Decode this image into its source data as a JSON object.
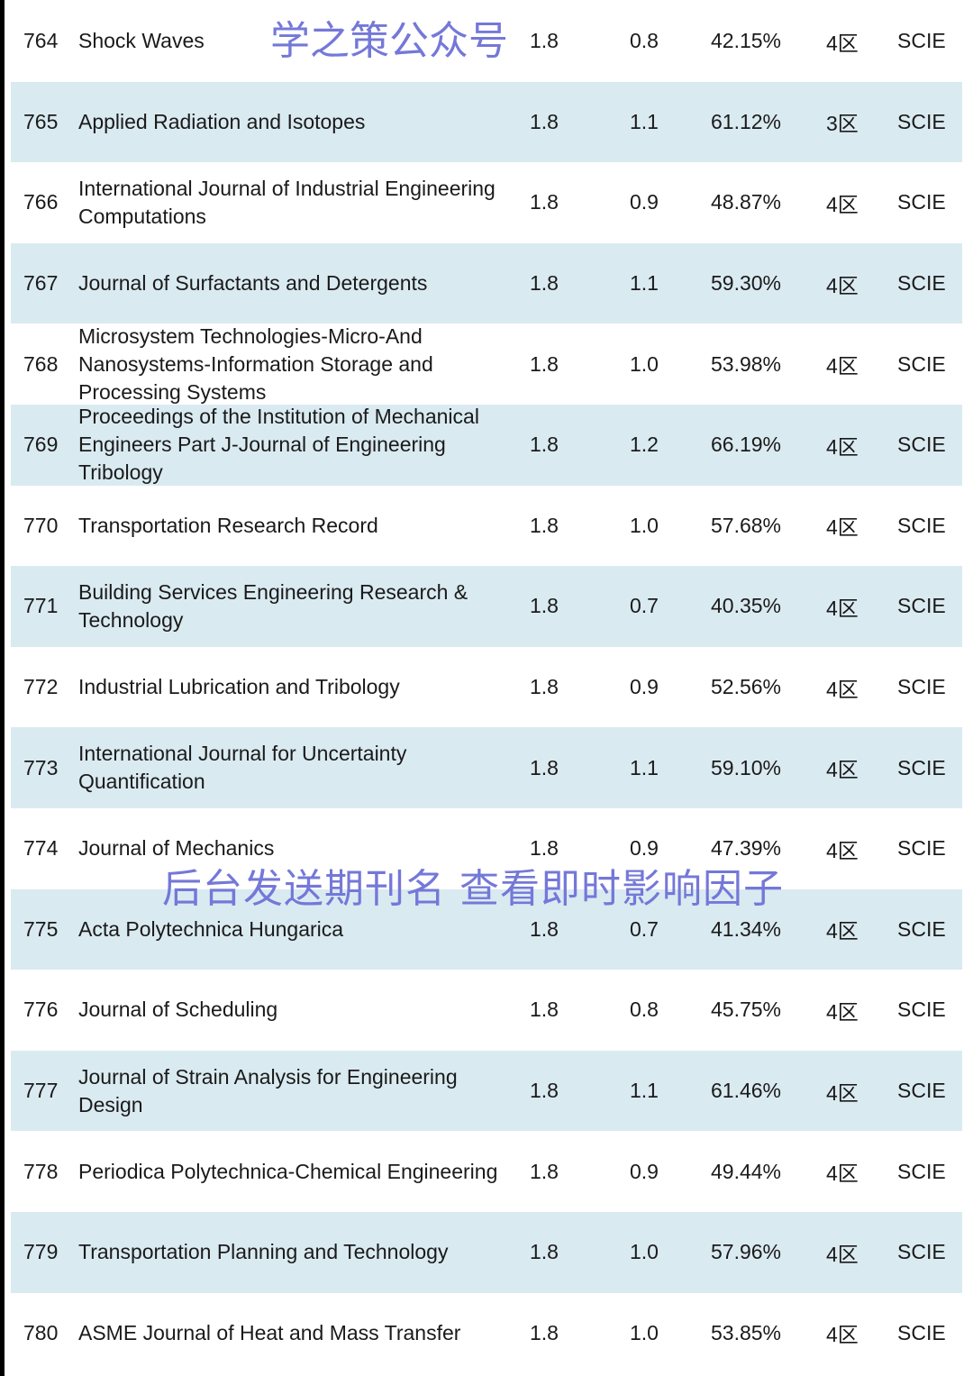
{
  "rows": [
    {
      "no": "764",
      "name": "Shock Waves",
      "if": "1.8",
      "v2": "0.8",
      "pct": "42.15%",
      "zone": "4区",
      "db": "SCIE"
    },
    {
      "no": "765",
      "name": "Applied Radiation and Isotopes",
      "if": "1.8",
      "v2": "1.1",
      "pct": "61.12%",
      "zone": "3区",
      "db": "SCIE"
    },
    {
      "no": "766",
      "name": "International Journal of Industrial Engineering Computations",
      "if": "1.8",
      "v2": "0.9",
      "pct": "48.87%",
      "zone": "4区",
      "db": "SCIE"
    },
    {
      "no": "767",
      "name": "Journal of Surfactants and Detergents",
      "if": "1.8",
      "v2": "1.1",
      "pct": "59.30%",
      "zone": "4区",
      "db": "SCIE"
    },
    {
      "no": "768",
      "name": "Microsystem Technologies-Micro-And Nanosystems-Information Storage and Processing Systems",
      "if": "1.8",
      "v2": "1.0",
      "pct": "53.98%",
      "zone": "4区",
      "db": "SCIE"
    },
    {
      "no": "769",
      "name": "Proceedings of the Institution of Mechanical Engineers Part J-Journal of Engineering Tribology",
      "if": "1.8",
      "v2": "1.2",
      "pct": "66.19%",
      "zone": "4区",
      "db": "SCIE"
    },
    {
      "no": "770",
      "name": "Transportation Research Record",
      "if": "1.8",
      "v2": "1.0",
      "pct": "57.68%",
      "zone": "4区",
      "db": "SCIE"
    },
    {
      "no": "771",
      "name": "Building Services Engineering Research & Technology",
      "if": "1.8",
      "v2": "0.7",
      "pct": "40.35%",
      "zone": "4区",
      "db": "SCIE"
    },
    {
      "no": "772",
      "name": "Industrial Lubrication and Tribology",
      "if": "1.8",
      "v2": "0.9",
      "pct": "52.56%",
      "zone": "4区",
      "db": "SCIE"
    },
    {
      "no": "773",
      "name": "International Journal for Uncertainty Quantification",
      "if": "1.8",
      "v2": "1.1",
      "pct": "59.10%",
      "zone": "4区",
      "db": "SCIE"
    },
    {
      "no": "774",
      "name": "Journal of Mechanics",
      "if": "1.8",
      "v2": "0.9",
      "pct": "47.39%",
      "zone": "4区",
      "db": "SCIE"
    },
    {
      "no": "775",
      "name": "Acta Polytechnica Hungarica",
      "if": "1.8",
      "v2": "0.7",
      "pct": "41.34%",
      "zone": "4区",
      "db": "SCIE"
    },
    {
      "no": "776",
      "name": "Journal of Scheduling",
      "if": "1.8",
      "v2": "0.8",
      "pct": "45.75%",
      "zone": "4区",
      "db": "SCIE"
    },
    {
      "no": "777",
      "name": "Journal of Strain Analysis for Engineering Design",
      "if": "1.8",
      "v2": "1.1",
      "pct": "61.46%",
      "zone": "4区",
      "db": "SCIE"
    },
    {
      "no": "778",
      "name": "Periodica Polytechnica-Chemical Engineering",
      "if": "1.8",
      "v2": "0.9",
      "pct": "49.44%",
      "zone": "4区",
      "db": "SCIE"
    },
    {
      "no": "779",
      "name": "Transportation Planning and Technology",
      "if": "1.8",
      "v2": "1.0",
      "pct": "57.96%",
      "zone": "4区",
      "db": "SCIE"
    },
    {
      "no": "780",
      "name": "ASME Journal of Heat and Mass Transfer",
      "if": "1.8",
      "v2": "1.0",
      "pct": "53.85%",
      "zone": "4区",
      "db": "SCIE"
    }
  ],
  "watermarks": {
    "top": "学之策公众号",
    "bottom": "后台发送期刊名 查看即时影响因子"
  },
  "colors": {
    "alt_row": "#daeaf1",
    "watermark": "#7478d8"
  }
}
